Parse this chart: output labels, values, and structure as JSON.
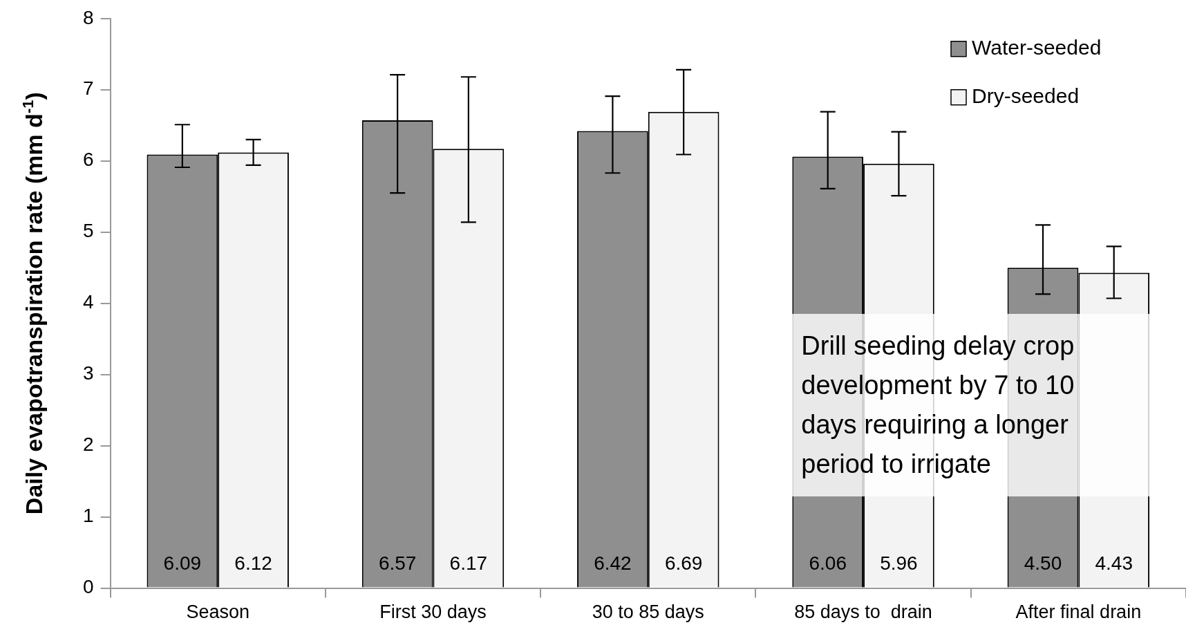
{
  "chart_data": {
    "type": "bar",
    "ylabel": "Daily evapotranspiration rate (mm d$^{-1}$)",
    "categories": [
      "Season",
      "First 30 days",
      "30 to 85 days",
      "85 days to  drain",
      "After final drain"
    ],
    "series": [
      {
        "name": "Water-seeded",
        "color": "#8f8f8f",
        "values": [
          6.09,
          6.57,
          6.42,
          6.06,
          4.5
        ],
        "value_labels": [
          "6.09",
          "6.57",
          "6.42",
          "6.06",
          "4.50"
        ],
        "errors": [
          [
            5.91,
            6.51
          ],
          [
            5.55,
            7.21
          ],
          [
            5.83,
            6.91
          ],
          [
            5.61,
            6.69
          ],
          [
            4.13,
            5.1
          ]
        ]
      },
      {
        "name": "Dry-seeded",
        "color": "#f3f3f3",
        "values": [
          6.12,
          6.17,
          6.69,
          5.96,
          4.43
        ],
        "value_labels": [
          "6.12",
          "6.17",
          "6.69",
          "5.96",
          "4.43"
        ],
        "errors": [
          [
            5.94,
            6.3
          ],
          [
            5.14,
            7.18
          ],
          [
            6.09,
            7.28
          ],
          [
            5.51,
            6.41
          ],
          [
            4.07,
            4.8
          ]
        ]
      }
    ],
    "ylim": [
      0,
      8
    ],
    "yticks": [
      0,
      1,
      2,
      3,
      4,
      5,
      6,
      7,
      8
    ],
    "grid": false,
    "legend": "top right",
    "annotations": [
      "Drill seeding delay crop development by 7 to 10 days requiring a longer period to irrigate"
    ]
  }
}
